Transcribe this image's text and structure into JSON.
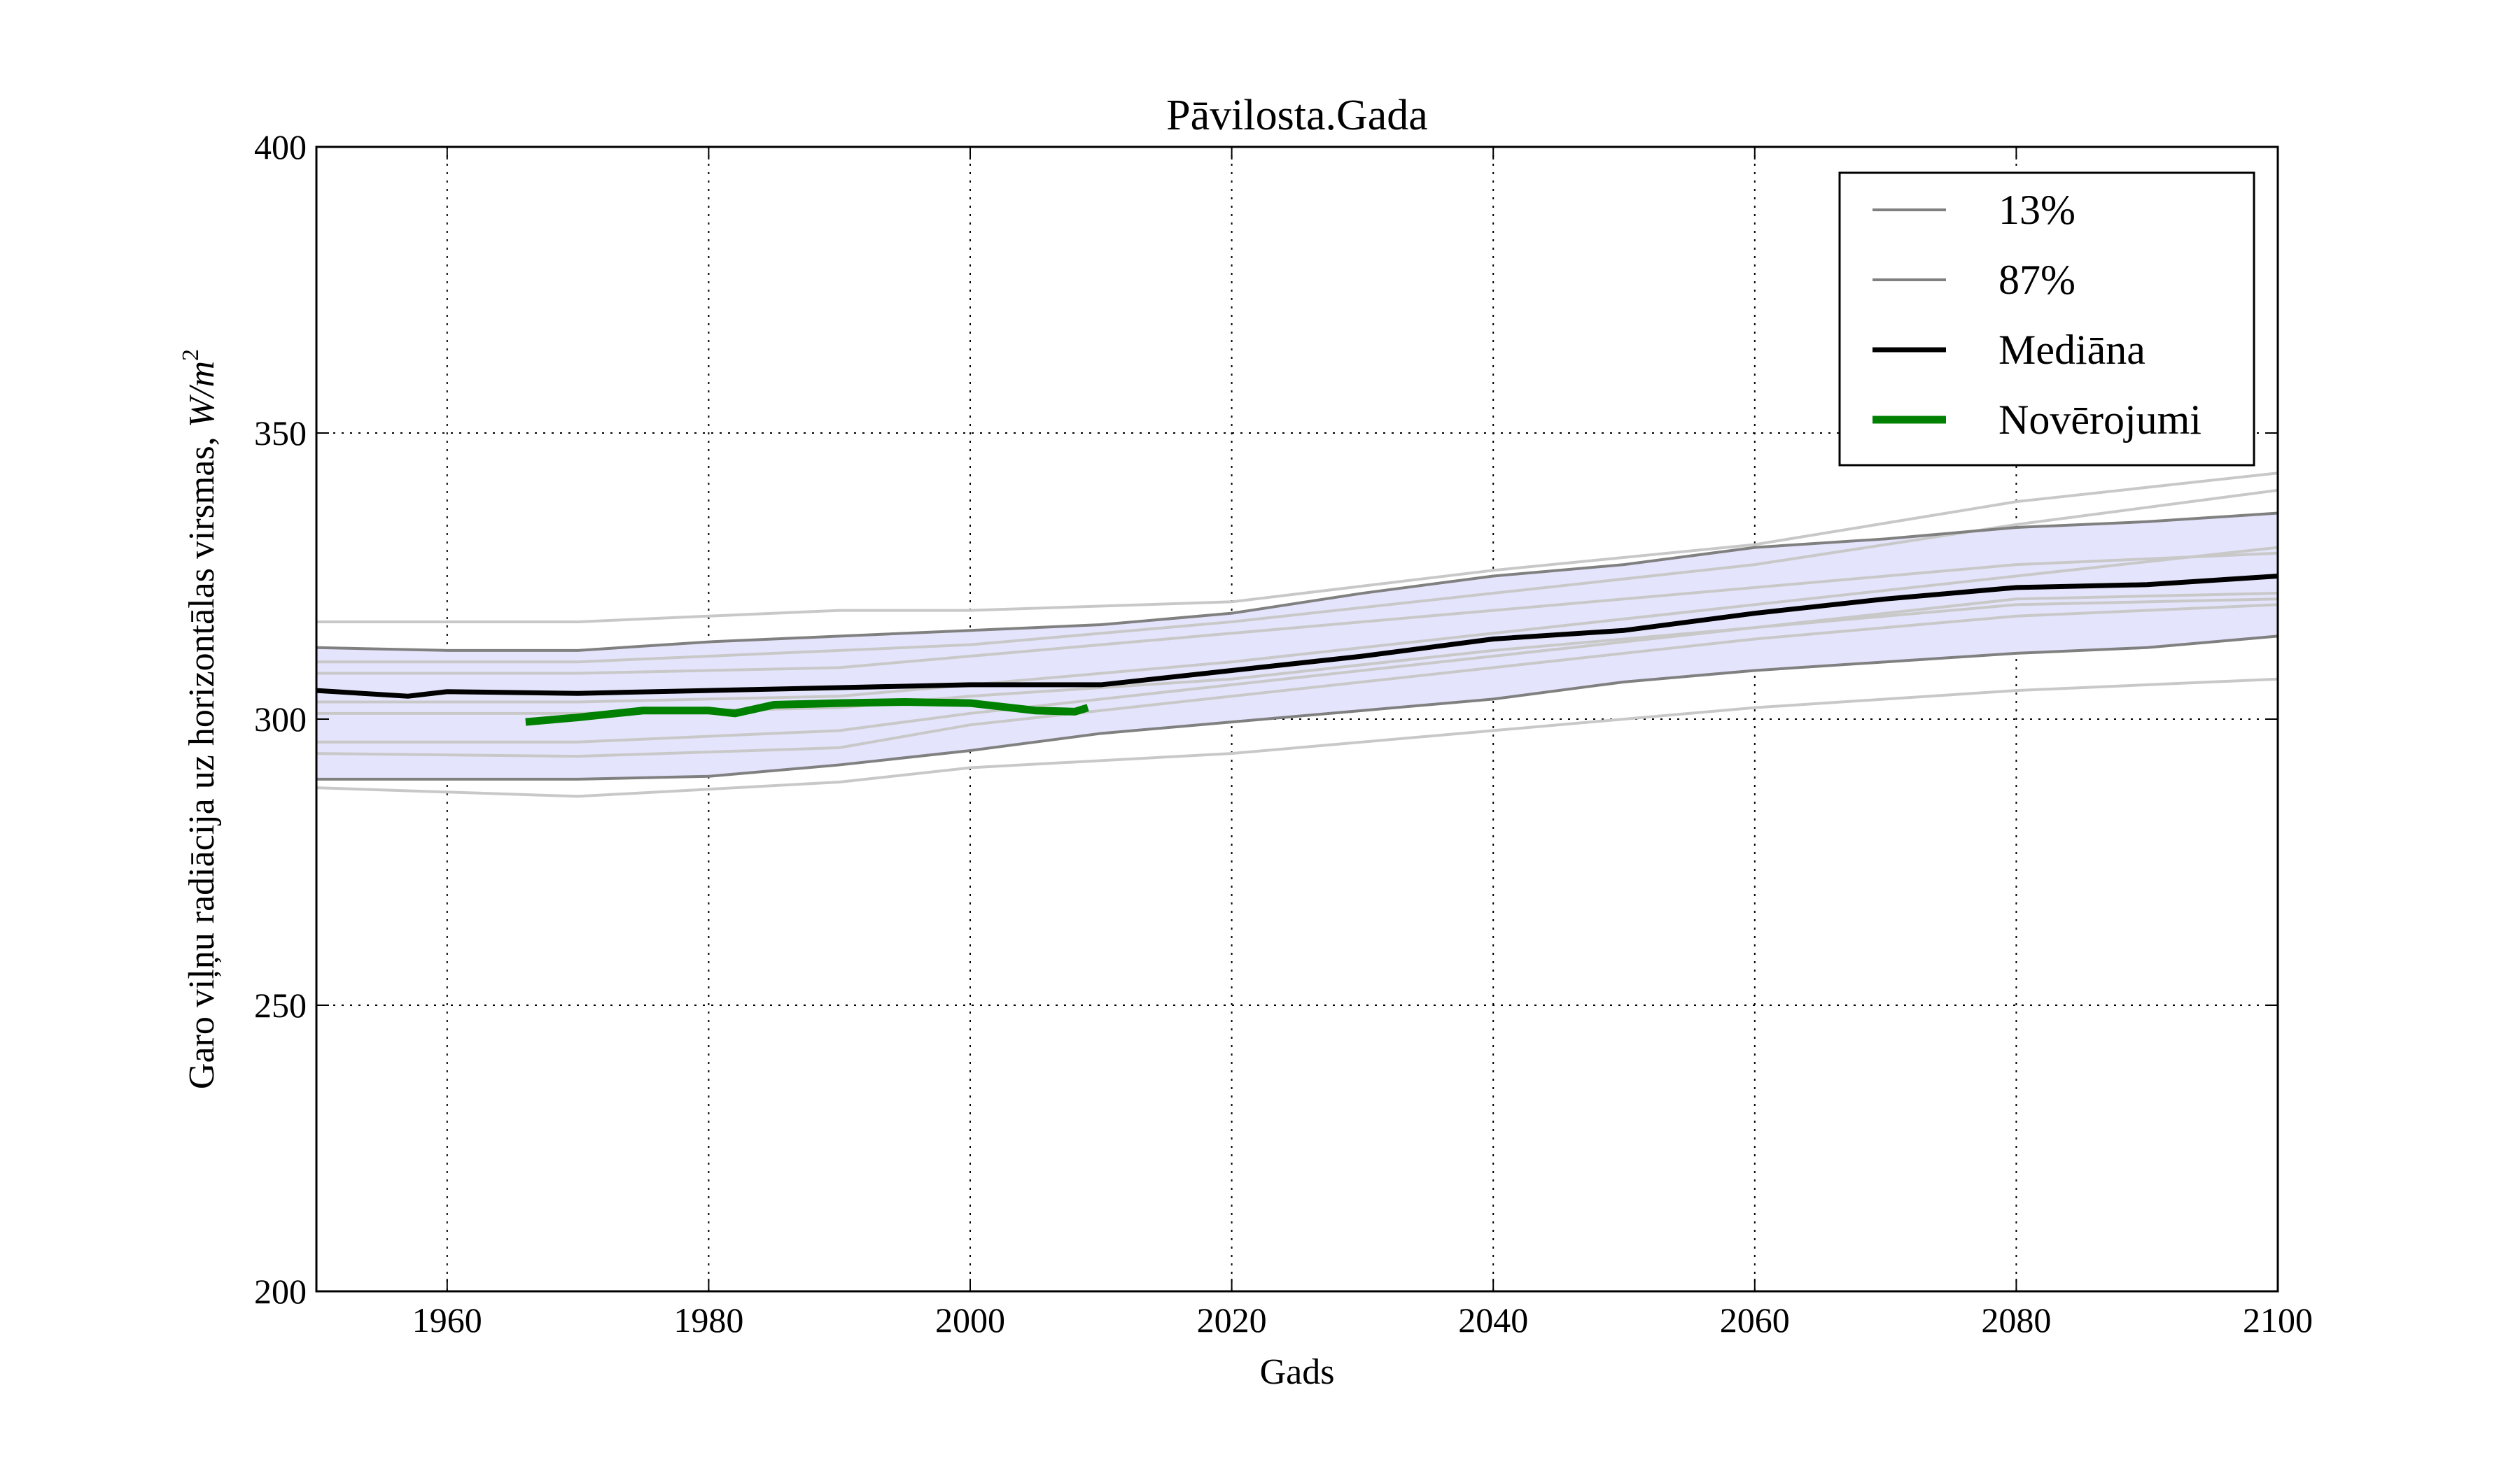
{
  "chart_data": {
    "type": "line",
    "title": "Pāvilosta.Gada",
    "xlabel": "Gads",
    "ylabel": "Garo viļņu radiācija uz horizontālas virsmas, ",
    "ylabel_unit": "W/m",
    "ylabel_unit_sup": "2",
    "xlim": [
      1950,
      2100
    ],
    "ylim": [
      200,
      400
    ],
    "xticks": [
      1960,
      1980,
      2000,
      2020,
      2040,
      2060,
      2080,
      2100
    ],
    "yticks": [
      200,
      250,
      300,
      350,
      400
    ],
    "grid": true,
    "legend_position": "top-right",
    "band_color": "#e4e4fc",
    "series": [
      {
        "name": "13%",
        "color": "#808080",
        "x": [
          1950,
          1960,
          1970,
          1980,
          1990,
          2000,
          2010,
          2020,
          2030,
          2040,
          2050,
          2060,
          2070,
          2080,
          2090,
          2100
        ],
        "y": [
          289.5,
          289.5,
          289.5,
          290,
          292,
          294.5,
          297.5,
          299.5,
          301.5,
          303.5,
          306.5,
          308.5,
          310,
          311.5,
          312.5,
          314.5
        ]
      },
      {
        "name": "87%",
        "color": "#808080",
        "x": [
          1950,
          1960,
          1970,
          1980,
          1990,
          2000,
          2010,
          2020,
          2030,
          2040,
          2050,
          2060,
          2070,
          2080,
          2090,
          2100
        ],
        "y": [
          312.5,
          312,
          312,
          313.5,
          314.5,
          315.5,
          316.5,
          318.5,
          322,
          325,
          327,
          330,
          331.5,
          333.5,
          334.5,
          336
        ]
      },
      {
        "name": "Mediāna",
        "color": "#000000",
        "x": [
          1950,
          1957,
          1960,
          1970,
          1980,
          1990,
          2000,
          2010,
          2020,
          2030,
          2040,
          2050,
          2060,
          2070,
          2080,
          2090,
          2100
        ],
        "y": [
          305,
          304,
          304.8,
          304.5,
          305,
          305.5,
          306,
          306,
          308.5,
          311,
          314,
          315.5,
          318.5,
          321,
          323,
          323.5,
          325
        ]
      },
      {
        "name": "Novērojumi",
        "color": "#008000",
        "x": [
          1966,
          1970,
          1975,
          1980,
          1982,
          1985,
          1990,
          1995,
          2000,
          2005,
          2008,
          2009
        ],
        "y": [
          299.5,
          300.3,
          301.5,
          301.5,
          301,
          302.5,
          302.8,
          303,
          302.8,
          301.5,
          301.3,
          302
        ]
      }
    ],
    "ensemble_members": {
      "color": "#c8c8c8",
      "x": [
        1950,
        1970,
        1990,
        2000,
        2020,
        2040,
        2060,
        2080,
        2100
      ],
      "lines": [
        [
          317,
          317,
          319,
          319,
          320.5,
          326,
          330.5,
          338,
          343
        ],
        [
          288,
          286.5,
          289,
          291.5,
          294,
          298,
          302,
          305,
          307
        ],
        [
          310,
          310,
          312,
          313,
          317,
          322,
          327,
          334,
          340
        ],
        [
          308,
          308,
          309,
          311,
          315,
          319,
          323,
          327,
          329
        ],
        [
          303,
          303,
          304,
          306,
          310,
          315,
          320,
          325,
          330
        ],
        [
          296,
          296,
          298,
          301,
          306,
          311,
          316,
          321,
          322
        ],
        [
          294,
          293.5,
          295,
          299,
          304,
          309,
          314,
          318,
          320
        ],
        [
          301,
          301,
          302,
          304,
          307,
          312,
          316,
          320,
          321
        ]
      ]
    }
  }
}
